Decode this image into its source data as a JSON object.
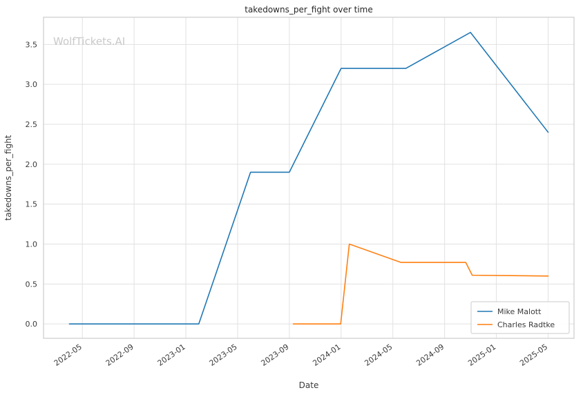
{
  "page": {
    "background": "#ffffff"
  },
  "chart_data": {
    "type": "line",
    "title": "takedowns_per_fight over time",
    "xlabel": "Date",
    "ylabel": "takedowns_per_fight",
    "watermark": "WolfTickets.AI",
    "x_ticks": [
      "2022-05",
      "2022-09",
      "2023-01",
      "2023-05",
      "2023-09",
      "2024-01",
      "2024-05",
      "2024-09",
      "2025-01",
      "2025-05"
    ],
    "y_ticks": [
      0.0,
      0.5,
      1.0,
      1.5,
      2.0,
      2.5,
      3.0,
      3.5
    ],
    "xlim": [
      "2022-02",
      "2025-07"
    ],
    "ylim": [
      -0.18,
      3.84
    ],
    "grid": true,
    "legend": {
      "position": "lower-right"
    },
    "colors": {
      "background": "#ffffff",
      "grid": "#e1e1e1",
      "border": "#cbcbcb",
      "text": "#3a3a3a",
      "watermark": "#c9c9c9"
    },
    "series": [
      {
        "name": "Mike Malott",
        "color": "#1f77b4",
        "points": [
          [
            "2022-04",
            0.0
          ],
          [
            "2023-02",
            0.0
          ],
          [
            "2023-06",
            1.9
          ],
          [
            "2023-09",
            1.9
          ],
          [
            "2024-01",
            3.2
          ],
          [
            "2024-06",
            3.2
          ],
          [
            "2024-11",
            3.65
          ],
          [
            "2025-05",
            2.4
          ]
        ]
      },
      {
        "name": "Charles Radtke",
        "color": "#ff7f0e",
        "points": [
          [
            "2023-09-10",
            0.0
          ],
          [
            "2023-12-30",
            0.0
          ],
          [
            "2024-01-20",
            1.0
          ],
          [
            "2024-05-20",
            0.77
          ],
          [
            "2024-10-20",
            0.77
          ],
          [
            "2024-11-05",
            0.61
          ],
          [
            "2025-05-01",
            0.6
          ]
        ]
      }
    ]
  }
}
